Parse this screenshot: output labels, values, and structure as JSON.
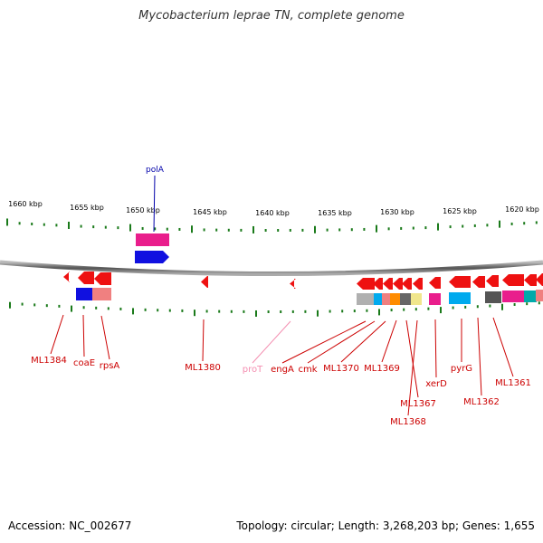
{
  "title": "Mycobacterium leprae TN, complete genome",
  "footer": {
    "accession": "Accession: NC_002677",
    "summary": "Topology: circular; Length: 3,268,203 bp; Genes: 1,655"
  },
  "map": {
    "kbp_labels": [
      "1660 kbp",
      "1655 kbp",
      "1650 kbp",
      "1645 kbp",
      "1640 kbp",
      "1635 kbp",
      "1630 kbp",
      "1625 kbp",
      "1620 kbp"
    ],
    "top_genes": [
      {
        "label": "polA",
        "color": "#0000aa"
      }
    ],
    "bottom_labels": [
      {
        "text": "ML1384",
        "color": "#cc0000"
      },
      {
        "text": "coaE",
        "color": "#cc0000"
      },
      {
        "text": "rpsA",
        "color": "#cc0000"
      },
      {
        "text": "ML1380",
        "color": "#cc0000"
      },
      {
        "text": "proT",
        "color": "#f48fb1"
      },
      {
        "text": "engA",
        "color": "#cc0000"
      },
      {
        "text": "cmk",
        "color": "#cc0000"
      },
      {
        "text": "ML1370",
        "color": "#cc0000"
      },
      {
        "text": "ML1369",
        "color": "#cc0000"
      },
      {
        "text": "ML1367",
        "color": "#cc0000"
      },
      {
        "text": "ML1368",
        "color": "#cc0000"
      },
      {
        "text": "xerD",
        "color": "#cc0000"
      },
      {
        "text": "pyrG",
        "color": "#cc0000"
      },
      {
        "text": "ML1362",
        "color": "#cc0000"
      },
      {
        "text": "ML1361",
        "color": "#cc0000"
      }
    ]
  }
}
